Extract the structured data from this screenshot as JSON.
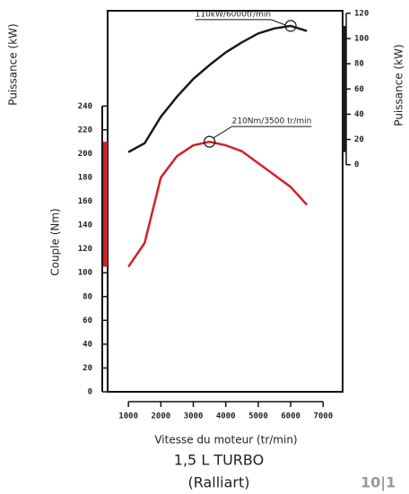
{
  "chart_data": {
    "type": "line",
    "x": [
      1000,
      1500,
      2000,
      2500,
      3000,
      3500,
      4000,
      4500,
      5000,
      5500,
      6000,
      6500
    ],
    "series": [
      {
        "name": "Couple (Nm)",
        "color": "#d42027",
        "axis": "y",
        "values": [
          105,
          125,
          180,
          198,
          207,
          210,
          207,
          202,
          192,
          182,
          172,
          157
        ]
      },
      {
        "name": "Puissance (kW)",
        "color": "#1a1a1a",
        "axis": "y2",
        "values": [
          10,
          17,
          38,
          54,
          68,
          79,
          89,
          97,
          104,
          108,
          110,
          106
        ]
      }
    ],
    "xlim": [
      360,
      7600
    ],
    "xticks": [
      1000,
      2000,
      3000,
      4000,
      5000,
      6000,
      7000
    ],
    "ylim": [
      0,
      320
    ],
    "yticks": [
      0,
      20,
      40,
      60,
      80,
      100,
      120,
      140,
      160,
      180,
      200,
      220,
      240
    ],
    "y2lim": [
      -180,
      122
    ],
    "y2ticks": [
      0,
      20,
      40,
      60,
      80,
      100,
      120
    ],
    "xlabel": "Vitesse du moteur (tr/min)",
    "ylabel": "Couple (Nm)",
    "y2label": "Puissance (kW)",
    "annotations": [
      {
        "text": "110kW/6000tr/min",
        "x": 6000,
        "y": 110,
        "axis": "y2"
      },
      {
        "text": "210Nm/3500 tr/min",
        "x": 3500,
        "y": 210,
        "axis": "y"
      }
    ],
    "title": "1,5 L TURBO",
    "subtitle": "(Ralliart)"
  },
  "page_number": "10|1"
}
